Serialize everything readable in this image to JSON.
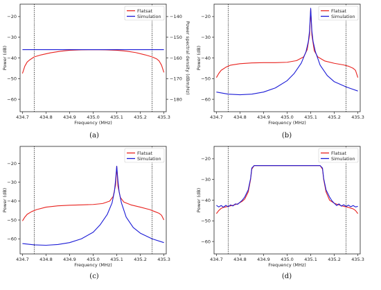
{
  "chart_data": [
    {
      "type": "line",
      "caption": "(a)",
      "xlabel": "Frequency (MHz)",
      "ylabel": "Power (dB)",
      "ylabel_right": "Power spectral density (dBm/Hz)",
      "xlim": [
        434.69,
        435.31
      ],
      "ylim": [
        -66,
        -14
      ],
      "xticks": [
        434.7,
        434.8,
        434.9,
        435.0,
        435.1,
        435.2,
        435.3
      ],
      "xtick_labels": [
        "434.7",
        "434.8",
        "434.9",
        "435.0",
        "435.1",
        "435.2",
        "435.3"
      ],
      "yticks": [
        -60,
        -50,
        -40,
        -30,
        -20
      ],
      "ytick_labels": [
        "−60",
        "−50",
        "−40",
        "−30",
        "−20"
      ],
      "ylim_right": [
        -186,
        -134
      ],
      "yticks_right": [
        -180,
        -170,
        -160,
        -150,
        -140
      ],
      "ytick_labels_right": [
        "−180",
        "−170",
        "−160",
        "−150",
        "−140"
      ],
      "vlines": [
        434.75,
        435.25
      ],
      "legend_position": "top-right",
      "series": [
        {
          "name": "Flatsat",
          "color": "#e8211d",
          "x": [
            434.7,
            434.71,
            434.72,
            434.73,
            434.75,
            434.78,
            434.82,
            434.86,
            434.9,
            434.95,
            435.0,
            435.05,
            435.1,
            435.14,
            435.18,
            435.22,
            435.25,
            435.27,
            435.28,
            435.29,
            435.3
          ],
          "y": [
            -47.5,
            -44,
            -42,
            -41,
            -39.5,
            -38.5,
            -37.5,
            -36.8,
            -36.3,
            -36.1,
            -36.0,
            -36.1,
            -36.3,
            -36.7,
            -37.4,
            -38.5,
            -39.5,
            -40.5,
            -41.5,
            -43.5,
            -47
          ]
        },
        {
          "name": "Simulation",
          "color": "#1a1ad6",
          "x": [
            434.7,
            435.3
          ],
          "y": [
            -36.0,
            -36.0
          ]
        }
      ]
    },
    {
      "type": "line",
      "caption": "(b)",
      "xlabel": "Frequency (MHz)",
      "ylabel": "Power (dB)",
      "xlim": [
        434.69,
        435.31
      ],
      "ylim": [
        -66,
        -14
      ],
      "xticks": [
        434.7,
        434.8,
        434.9,
        435.0,
        435.1,
        435.2,
        435.3
      ],
      "xtick_labels": [
        "434.7",
        "434.8",
        "434.9",
        "435.0",
        "435.1",
        "435.2",
        "435.3"
      ],
      "yticks": [
        -60,
        -50,
        -40,
        -30,
        -20
      ],
      "ytick_labels": [
        "−60",
        "−50",
        "−40",
        "−30",
        "−20"
      ],
      "vlines": [
        434.75,
        435.25
      ],
      "legend_position": "top-right",
      "series": [
        {
          "name": "Flatsat",
          "color": "#e8211d",
          "x": [
            434.7,
            434.71,
            434.72,
            434.74,
            434.76,
            434.8,
            434.85,
            434.9,
            434.95,
            435.0,
            435.04,
            435.07,
            435.085,
            435.095,
            435.1,
            435.105,
            435.115,
            435.13,
            435.16,
            435.2,
            435.24,
            435.26,
            435.28,
            435.29,
            435.3
          ],
          "y": [
            -49.5,
            -47.5,
            -46,
            -44.5,
            -43.5,
            -42.8,
            -42.4,
            -42.3,
            -42.3,
            -42.1,
            -41.3,
            -39.5,
            -36,
            -29,
            -16.5,
            -29,
            -36.5,
            -39.5,
            -41.5,
            -42.6,
            -43.4,
            -44,
            -45,
            -46,
            -49.5
          ]
        },
        {
          "name": "Simulation",
          "color": "#1a1ad6",
          "x": [
            434.7,
            434.75,
            434.8,
            434.85,
            434.9,
            434.95,
            435.0,
            435.03,
            435.06,
            435.08,
            435.09,
            435.095,
            435.1,
            435.105,
            435.11,
            435.12,
            435.14,
            435.17,
            435.2,
            435.25,
            435.3
          ],
          "y": [
            -56.5,
            -57.5,
            -57.8,
            -57.5,
            -56.5,
            -54.5,
            -51,
            -47.5,
            -42.5,
            -37,
            -32,
            -27,
            -16,
            -27,
            -32,
            -37,
            -43.5,
            -48.5,
            -51.5,
            -54,
            -56
          ]
        }
      ]
    },
    {
      "type": "line",
      "caption": "(c)",
      "xlabel": "Frequency (MHz)",
      "ylabel": "Power (dB)",
      "xlim": [
        434.69,
        435.31
      ],
      "ylim": [
        -68,
        -11
      ],
      "xticks": [
        434.7,
        434.8,
        434.9,
        435.0,
        435.1,
        435.2,
        435.3
      ],
      "xtick_labels": [
        "434.7",
        "434.8",
        "434.9",
        "435.0",
        "435.1",
        "435.2",
        "435.3"
      ],
      "yticks": [
        -60,
        -50,
        -40,
        -30,
        -20
      ],
      "ytick_labels": [
        "−60",
        "−50",
        "−40",
        "−30",
        "−20"
      ],
      "vlines": [
        434.75,
        435.25
      ],
      "legend_position": "top-right",
      "series": [
        {
          "name": "Flatsat",
          "color": "#e8211d",
          "x": [
            434.7,
            434.71,
            434.72,
            434.74,
            434.76,
            434.8,
            434.85,
            434.9,
            434.95,
            435.0,
            435.04,
            435.07,
            435.085,
            435.095,
            435.1,
            435.105,
            435.115,
            435.13,
            435.16,
            435.2,
            435.24,
            435.26,
            435.28,
            435.29,
            435.3
          ],
          "y": [
            -50.5,
            -48.5,
            -47,
            -45.5,
            -44.5,
            -43.2,
            -42.5,
            -42.2,
            -42,
            -41.8,
            -41.3,
            -40,
            -37.5,
            -31.5,
            -21.5,
            -32,
            -38,
            -40.5,
            -42,
            -43.2,
            -44.5,
            -45.5,
            -46.5,
            -47.5,
            -50
          ]
        },
        {
          "name": "Simulation",
          "color": "#1a1ad6",
          "x": [
            434.7,
            434.75,
            434.8,
            434.85,
            434.9,
            434.95,
            435.0,
            435.03,
            435.06,
            435.08,
            435.09,
            435.095,
            435.1,
            435.105,
            435.11,
            435.12,
            435.14,
            435.17,
            435.2,
            435.25,
            435.3
          ],
          "y": [
            -62.5,
            -63.2,
            -63.4,
            -63,
            -62,
            -60,
            -56.5,
            -52.5,
            -47,
            -41,
            -35,
            -29,
            -21.5,
            -29,
            -35,
            -41,
            -48.5,
            -54,
            -57,
            -60,
            -62
          ]
        }
      ]
    },
    {
      "type": "line",
      "caption": "(d)",
      "xlabel": "Frequency (MHz)",
      "ylabel": "Power (dB)",
      "xlim": [
        434.69,
        435.31
      ],
      "ylim": [
        -66,
        -14
      ],
      "xticks": [
        434.7,
        434.8,
        434.9,
        435.0,
        435.1,
        435.2,
        435.3
      ],
      "xtick_labels": [
        "434.7",
        "434.8",
        "434.9",
        "435.0",
        "435.1",
        "435.2",
        "435.3"
      ],
      "yticks": [
        -60,
        -50,
        -40,
        -30,
        -20
      ],
      "ytick_labels": [
        "−60",
        "−50",
        "−40",
        "−30",
        "−20"
      ],
      "vlines": [
        434.75,
        435.25
      ],
      "legend_position": "top-right",
      "series": [
        {
          "name": "Flatsat",
          "color": "#e8211d",
          "x": [
            434.7,
            434.71,
            434.72,
            434.73,
            434.75,
            434.77,
            434.79,
            434.81,
            434.82,
            434.835,
            434.845,
            434.85,
            434.86,
            435.14,
            435.15,
            435.155,
            435.165,
            435.18,
            435.2,
            435.22,
            435.24,
            435.26,
            435.28,
            435.29,
            435.3
          ],
          "y": [
            -46.5,
            -45,
            -44,
            -43.5,
            -43,
            -42.5,
            -41.8,
            -40.5,
            -39.5,
            -36,
            -30,
            -25,
            -23.3,
            -23.3,
            -25,
            -30,
            -36,
            -40,
            -41.5,
            -42.3,
            -43,
            -43.5,
            -44.2,
            -45,
            -46.5
          ]
        },
        {
          "name": "Simulation",
          "color": "#1a1ad6",
          "x": [
            434.7,
            434.71,
            434.72,
            434.73,
            434.74,
            434.75,
            434.76,
            434.77,
            434.78,
            434.79,
            434.8,
            434.81,
            434.82,
            434.835,
            434.845,
            434.85,
            434.86,
            435.14,
            435.15,
            435.155,
            435.165,
            435.18,
            435.19,
            435.2,
            435.21,
            435.22,
            435.23,
            435.24,
            435.25,
            435.26,
            435.27,
            435.28,
            435.29,
            435.3
          ],
          "y": [
            -42.5,
            -43.3,
            -42.6,
            -43.4,
            -42.5,
            -43.2,
            -42.3,
            -42.8,
            -41.8,
            -42,
            -41,
            -40,
            -38.5,
            -35,
            -29.5,
            -24.5,
            -23.3,
            -23.3,
            -24.5,
            -29.5,
            -35,
            -38.5,
            -40.3,
            -41.5,
            -42.6,
            -41.8,
            -42.9,
            -42.2,
            -43.1,
            -42.4,
            -43.2,
            -42.6,
            -43.3,
            -43
          ]
        }
      ]
    }
  ]
}
